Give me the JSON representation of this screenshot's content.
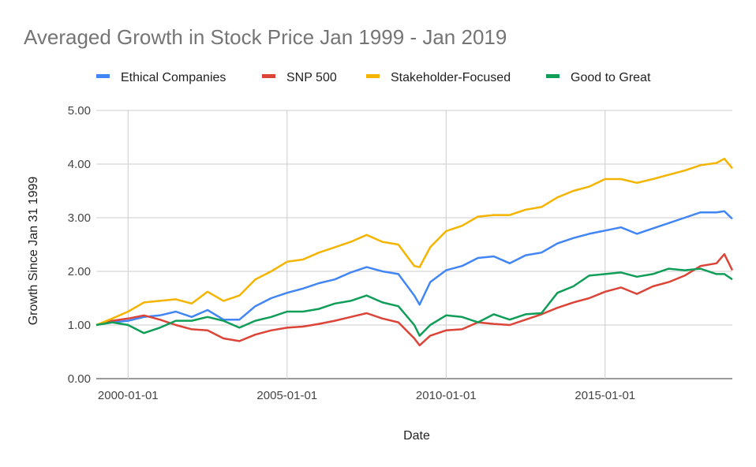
{
  "chart_data": {
    "type": "line",
    "title": "Averaged Growth in Stock Price Jan 1999 - Jan 2019",
    "xlabel": "Date",
    "ylabel": "Growth Since Jan 31 1999",
    "ylim": [
      0,
      5
    ],
    "yticks": [
      "0.00",
      "1.00",
      "2.00",
      "3.00",
      "4.00",
      "5.00"
    ],
    "xticks": [
      "2000-01-01",
      "2005-01-01",
      "2010-01-01",
      "2015-01-01"
    ],
    "xlim": [
      "1999-01",
      "2019-01"
    ],
    "grid": true,
    "legend_position": "top",
    "x": [
      "1999-01",
      "1999-07",
      "2000-01",
      "2000-07",
      "2001-01",
      "2001-07",
      "2002-01",
      "2002-07",
      "2003-01",
      "2003-07",
      "2004-01",
      "2004-07",
      "2005-01",
      "2005-07",
      "2006-01",
      "2006-07",
      "2007-01",
      "2007-07",
      "2008-01",
      "2008-07",
      "2009-01",
      "2009-03",
      "2009-07",
      "2010-01",
      "2010-07",
      "2011-01",
      "2011-07",
      "2012-01",
      "2012-07",
      "2013-01",
      "2013-07",
      "2014-01",
      "2014-07",
      "2015-01",
      "2015-07",
      "2016-01",
      "2016-07",
      "2017-01",
      "2017-07",
      "2018-01",
      "2018-07",
      "2018-10",
      "2019-01"
    ],
    "series": [
      {
        "name": "Ethical Companies",
        "color": "#4285F4",
        "values": [
          1.0,
          1.05,
          1.08,
          1.15,
          1.18,
          1.25,
          1.15,
          1.28,
          1.1,
          1.1,
          1.35,
          1.5,
          1.6,
          1.68,
          1.78,
          1.85,
          1.98,
          2.08,
          2.0,
          1.95,
          1.55,
          1.38,
          1.8,
          2.02,
          2.1,
          2.25,
          2.28,
          2.15,
          2.3,
          2.35,
          2.52,
          2.62,
          2.7,
          2.76,
          2.82,
          2.7,
          2.8,
          2.9,
          3.0,
          3.1,
          3.1,
          3.12,
          2.98
        ]
      },
      {
        "name": "SNP 500",
        "color": "#DB4437",
        "values": [
          1.0,
          1.08,
          1.12,
          1.18,
          1.1,
          1.0,
          0.92,
          0.9,
          0.75,
          0.7,
          0.82,
          0.9,
          0.95,
          0.97,
          1.02,
          1.08,
          1.15,
          1.22,
          1.12,
          1.05,
          0.75,
          0.62,
          0.8,
          0.9,
          0.92,
          1.05,
          1.02,
          1.0,
          1.1,
          1.2,
          1.32,
          1.42,
          1.5,
          1.62,
          1.7,
          1.58,
          1.72,
          1.8,
          1.92,
          2.1,
          2.15,
          2.32,
          2.02
        ]
      },
      {
        "name": "Stakeholder-Focused",
        "color": "#F4B400",
        "values": [
          1.0,
          1.12,
          1.25,
          1.42,
          1.45,
          1.48,
          1.4,
          1.62,
          1.45,
          1.55,
          1.85,
          2.0,
          2.18,
          2.22,
          2.35,
          2.45,
          2.55,
          2.68,
          2.55,
          2.5,
          2.1,
          2.08,
          2.45,
          2.75,
          2.85,
          3.02,
          3.05,
          3.05,
          3.15,
          3.2,
          3.38,
          3.5,
          3.58,
          3.72,
          3.72,
          3.65,
          3.72,
          3.8,
          3.88,
          3.98,
          4.02,
          4.1,
          3.92
        ]
      },
      {
        "name": "Good to Great",
        "color": "#0F9D58",
        "values": [
          1.0,
          1.05,
          1.0,
          0.85,
          0.95,
          1.08,
          1.08,
          1.15,
          1.08,
          0.95,
          1.08,
          1.15,
          1.25,
          1.25,
          1.3,
          1.4,
          1.45,
          1.55,
          1.42,
          1.35,
          1.0,
          0.8,
          1.0,
          1.18,
          1.15,
          1.05,
          1.2,
          1.1,
          1.2,
          1.22,
          1.6,
          1.72,
          1.92,
          1.95,
          1.98,
          1.9,
          1.95,
          2.05,
          2.02,
          2.05,
          1.95,
          1.95,
          1.85
        ]
      }
    ]
  }
}
